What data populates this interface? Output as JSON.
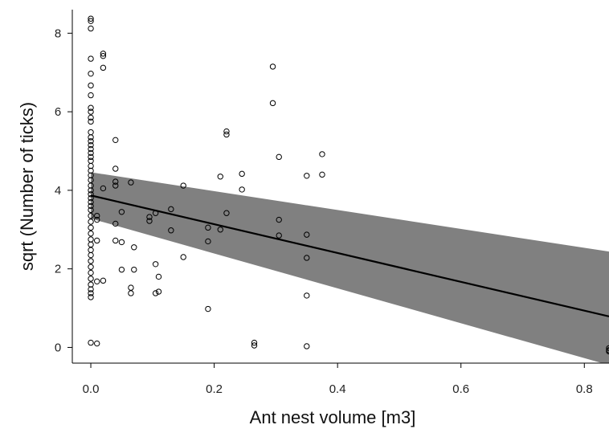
{
  "chart_data": {
    "type": "scatter",
    "title": "",
    "xlabel": "Ant nest volume [m3]",
    "ylabel": "sqrt (Number of ticks)",
    "xlim": [
      -0.03,
      0.84
    ],
    "ylim": [
      -0.4,
      8.6
    ],
    "x_ticks": [
      0.0,
      0.2,
      0.4,
      0.6,
      0.8
    ],
    "x_tick_labels": [
      "0.0",
      "0.2",
      "0.4",
      "0.6",
      "0.8"
    ],
    "y_ticks": [
      0,
      2,
      4,
      6,
      8
    ],
    "y_tick_labels": [
      "0",
      "2",
      "4",
      "6",
      "8"
    ],
    "grid": false,
    "colors": {
      "band": "#808080",
      "line": "#000000",
      "points": "#000000"
    },
    "regression": {
      "x": [
        0.0,
        0.84
      ],
      "y": [
        3.87,
        0.79
      ],
      "ci_lower": [
        3.28,
        -0.45
      ],
      "ci_upper": [
        4.46,
        2.44
      ]
    },
    "points": [
      [
        0.0,
        8.37
      ],
      [
        0.0,
        8.31
      ],
      [
        0.0,
        8.12
      ],
      [
        0.0,
        7.35
      ],
      [
        0.0,
        6.97
      ],
      [
        0.0,
        6.67
      ],
      [
        0.0,
        6.42
      ],
      [
        0.0,
        6.1
      ],
      [
        0.0,
        6.0
      ],
      [
        0.0,
        5.85
      ],
      [
        0.0,
        5.75
      ],
      [
        0.0,
        5.48
      ],
      [
        0.0,
        5.35
      ],
      [
        0.0,
        5.25
      ],
      [
        0.0,
        5.15
      ],
      [
        0.0,
        5.05
      ],
      [
        0.0,
        4.95
      ],
      [
        0.0,
        4.85
      ],
      [
        0.0,
        4.75
      ],
      [
        0.0,
        4.62
      ],
      [
        0.0,
        4.5
      ],
      [
        0.0,
        4.38
      ],
      [
        0.0,
        4.26
      ],
      [
        0.0,
        4.12
      ],
      [
        0.0,
        4.0
      ],
      [
        0.0,
        3.9
      ],
      [
        0.0,
        3.8
      ],
      [
        0.0,
        3.7
      ],
      [
        0.0,
        3.6
      ],
      [
        0.0,
        3.5
      ],
      [
        0.0,
        3.35
      ],
      [
        0.0,
        3.2
      ],
      [
        0.0,
        3.05
      ],
      [
        0.0,
        2.9
      ],
      [
        0.0,
        2.75
      ],
      [
        0.0,
        2.62
      ],
      [
        0.0,
        2.48
      ],
      [
        0.0,
        2.35
      ],
      [
        0.0,
        2.2
      ],
      [
        0.0,
        2.05
      ],
      [
        0.0,
        1.9
      ],
      [
        0.0,
        1.75
      ],
      [
        0.0,
        1.6
      ],
      [
        0.0,
        1.48
      ],
      [
        0.0,
        1.38
      ],
      [
        0.0,
        1.28
      ],
      [
        0.0,
        0.12
      ],
      [
        0.01,
        3.35
      ],
      [
        0.01,
        3.25
      ],
      [
        0.01,
        2.72
      ],
      [
        0.01,
        1.68
      ],
      [
        0.01,
        0.1
      ],
      [
        0.02,
        7.48
      ],
      [
        0.02,
        7.42
      ],
      [
        0.02,
        7.12
      ],
      [
        0.02,
        4.05
      ],
      [
        0.02,
        1.7
      ],
      [
        0.04,
        5.28
      ],
      [
        0.04,
        4.55
      ],
      [
        0.04,
        4.22
      ],
      [
        0.04,
        4.12
      ],
      [
        0.04,
        3.15
      ],
      [
        0.04,
        2.72
      ],
      [
        0.05,
        3.45
      ],
      [
        0.05,
        2.68
      ],
      [
        0.05,
        1.98
      ],
      [
        0.065,
        4.2
      ],
      [
        0.065,
        1.52
      ],
      [
        0.065,
        1.38
      ],
      [
        0.07,
        2.55
      ],
      [
        0.07,
        1.98
      ],
      [
        0.095,
        3.32
      ],
      [
        0.095,
        3.22
      ],
      [
        0.105,
        3.42
      ],
      [
        0.105,
        2.12
      ],
      [
        0.105,
        1.38
      ],
      [
        0.11,
        1.8
      ],
      [
        0.11,
        1.42
      ],
      [
        0.13,
        3.52
      ],
      [
        0.13,
        2.98
      ],
      [
        0.15,
        4.12
      ],
      [
        0.15,
        2.3
      ],
      [
        0.19,
        3.05
      ],
      [
        0.19,
        2.7
      ],
      [
        0.19,
        0.98
      ],
      [
        0.21,
        4.35
      ],
      [
        0.21,
        3.0
      ],
      [
        0.22,
        5.5
      ],
      [
        0.22,
        5.42
      ],
      [
        0.22,
        3.42
      ],
      [
        0.245,
        4.42
      ],
      [
        0.245,
        4.02
      ],
      [
        0.265,
        0.12
      ],
      [
        0.265,
        0.05
      ],
      [
        0.295,
        7.15
      ],
      [
        0.295,
        6.22
      ],
      [
        0.305,
        4.85
      ],
      [
        0.305,
        3.25
      ],
      [
        0.305,
        2.85
      ],
      [
        0.35,
        4.37
      ],
      [
        0.35,
        2.87
      ],
      [
        0.35,
        2.28
      ],
      [
        0.35,
        1.32
      ],
      [
        0.35,
        0.03
      ],
      [
        0.375,
        4.92
      ],
      [
        0.375,
        4.4
      ],
      [
        0.84,
        -0.02
      ],
      [
        0.84,
        -0.07
      ],
      [
        0.84,
        -0.1
      ]
    ]
  }
}
